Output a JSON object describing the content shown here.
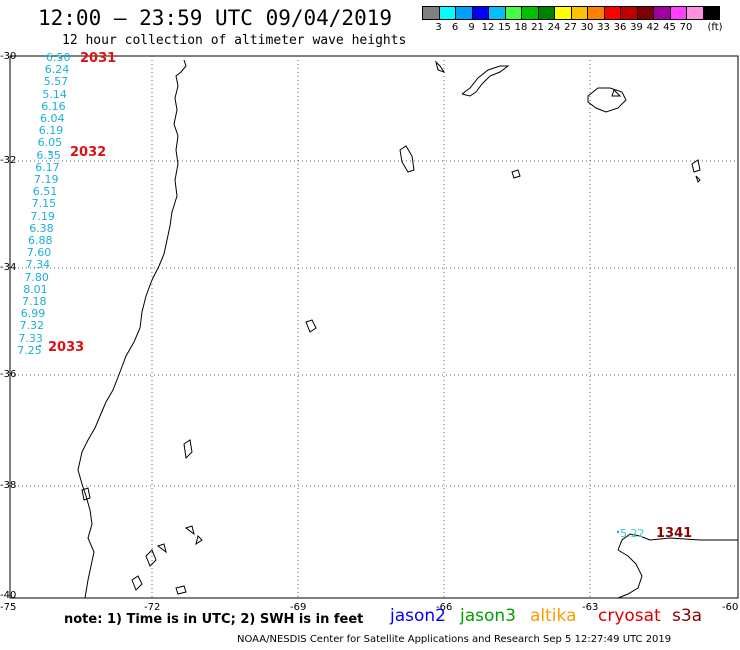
{
  "header": {
    "title": "12:00 – 23:59 UTC 09/04/2019",
    "subtitle": "12 hour collection of altimeter wave heights"
  },
  "legend": {
    "colors": [
      "#808080",
      "#00ffff",
      "#00a0ff",
      "#0000ff",
      "#00c0ff",
      "#40ff40",
      "#00c000",
      "#008000",
      "#ffff00",
      "#ffc000",
      "#ff8000",
      "#ff0000",
      "#c00000",
      "#800000",
      "#a000a0",
      "#ff40ff",
      "#ff90e0",
      "#000000"
    ],
    "labels": [
      "3",
      "6",
      "9",
      "12",
      "15",
      "18",
      "21",
      "24",
      "27",
      "30",
      "33",
      "36",
      "39",
      "42",
      "45",
      "70",
      "(ft)"
    ]
  },
  "axes": {
    "lat_labels": [
      "-30",
      "-32",
      "-34",
      "-36",
      "-38",
      "-40"
    ],
    "lon_labels": [
      "-75",
      "-72",
      "-69",
      "-66",
      "-63",
      "-60"
    ]
  },
  "swh_readings": [
    "6.50",
    "6.24",
    "5.57",
    "5.14",
    "6.16",
    "6.04",
    "6.19",
    "6.05",
    "6.35",
    "6.17",
    "7.19",
    "6.51",
    "7.15",
    "7.19",
    "6.38",
    "6.88",
    "7.60",
    "7.34",
    "7.80",
    "8.01",
    "7.18",
    "6.99",
    "7.32",
    "7.33",
    "7.25"
  ],
  "passes": [
    {
      "id": "2031"
    },
    {
      "id": "2032"
    },
    {
      "id": "2033"
    },
    {
      "id": "1341",
      "swh": "5.22"
    }
  ],
  "note": "note: 1) Time is in UTC; 2) SWH is in feet",
  "satellites": [
    {
      "name": "jason2",
      "color": "#0000ff"
    },
    {
      "name": "jason3",
      "color": "#00a000"
    },
    {
      "name": "altika",
      "color": "#ff9900"
    },
    {
      "name": "cryosat",
      "color": "#dd0000"
    },
    {
      "name": "s3a",
      "color": "#8b0000"
    }
  ],
  "footer": "NOAA/NESDIS Center for Satellite Applications and Research   Sep  5 12:27:49 UTC 2019"
}
